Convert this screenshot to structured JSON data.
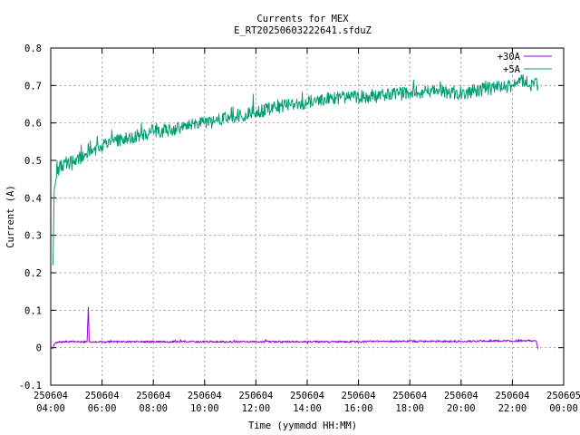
{
  "chart_data": {
    "type": "line",
    "title": "Currents for MEX",
    "subtitle": "E_RT20250603222641.sfduZ",
    "xlabel": "Time (yymmdd HH:MM)",
    "ylabel": "Current (A)",
    "xlim": [
      "2025-06-04T04:00",
      "2025-06-05T00:00"
    ],
    "ylim": [
      -0.1,
      0.8
    ],
    "grid": true,
    "legend_position": "top-right",
    "x_ticks": [
      {
        "x": "2025-06-04T04:00",
        "date": "250604",
        "time": "04:00"
      },
      {
        "x": "2025-06-04T06:00",
        "date": "250604",
        "time": "06:00"
      },
      {
        "x": "2025-06-04T08:00",
        "date": "250604",
        "time": "08:00"
      },
      {
        "x": "2025-06-04T10:00",
        "date": "250604",
        "time": "10:00"
      },
      {
        "x": "2025-06-04T12:00",
        "date": "250604",
        "time": "12:00"
      },
      {
        "x": "2025-06-04T14:00",
        "date": "250604",
        "time": "14:00"
      },
      {
        "x": "2025-06-04T16:00",
        "date": "250604",
        "time": "16:00"
      },
      {
        "x": "2025-06-04T18:00",
        "date": "250604",
        "time": "18:00"
      },
      {
        "x": "2025-06-04T20:00",
        "date": "250604",
        "time": "20:00"
      },
      {
        "x": "2025-06-04T22:00",
        "date": "250604",
        "time": "22:00"
      },
      {
        "x": "2025-06-05T00:00",
        "date": "250605",
        "time": "00:00"
      }
    ],
    "y_ticks": [
      {
        "value": -0.1,
        "label": "-0.1"
      },
      {
        "value": 0,
        "label": "0"
      },
      {
        "value": 0.1,
        "label": "0.1"
      },
      {
        "value": 0.2,
        "label": "0.2"
      },
      {
        "value": 0.3,
        "label": "0.3"
      },
      {
        "value": 0.4,
        "label": "0.4"
      },
      {
        "value": 0.5,
        "label": "0.5"
      },
      {
        "value": 0.6,
        "label": "0.6"
      },
      {
        "value": 0.7,
        "label": "0.7"
      },
      {
        "value": 0.8,
        "label": "0.8"
      }
    ],
    "series": [
      {
        "name": "+30A",
        "color": "#9400d3",
        "x": [
          "2025-06-04T04:00",
          "2025-06-04T04:05",
          "2025-06-04T04:10",
          "2025-06-04T04:20",
          "2025-06-04T04:40",
          "2025-06-04T05:00",
          "2025-06-04T05:25",
          "2025-06-04T05:28",
          "2025-06-04T05:30",
          "2025-06-04T06:00",
          "2025-06-04T07:00",
          "2025-06-04T08:00",
          "2025-06-04T09:00",
          "2025-06-04T10:00",
          "2025-06-04T11:00",
          "2025-06-04T12:00",
          "2025-06-04T13:00",
          "2025-06-04T14:00",
          "2025-06-04T15:00",
          "2025-06-04T16:00",
          "2025-06-04T17:00",
          "2025-06-04T18:00",
          "2025-06-04T19:00",
          "2025-06-04T20:00",
          "2025-06-04T21:00",
          "2025-06-04T22:00",
          "2025-06-04T22:40",
          "2025-06-04T22:55",
          "2025-06-04T23:00"
        ],
        "y": [
          0.0,
          0.0,
          0.012,
          0.015,
          0.016,
          0.016,
          0.015,
          0.108,
          0.016,
          0.016,
          0.016,
          0.016,
          0.016,
          0.016,
          0.016,
          0.016,
          0.016,
          0.016,
          0.016,
          0.016,
          0.017,
          0.017,
          0.017,
          0.017,
          0.018,
          0.018,
          0.019,
          0.018,
          -0.003
        ]
      },
      {
        "name": "+5A",
        "color": "#009e73",
        "x": [
          "2025-06-04T04:05",
          "2025-06-04T04:08",
          "2025-06-04T04:12",
          "2025-06-04T04:20",
          "2025-06-04T04:30",
          "2025-06-04T05:00",
          "2025-06-04T05:30",
          "2025-06-04T06:00",
          "2025-06-04T07:00",
          "2025-06-04T08:00",
          "2025-06-04T09:00",
          "2025-06-04T10:00",
          "2025-06-04T11:00",
          "2025-06-04T12:00",
          "2025-06-04T13:00",
          "2025-06-04T14:00",
          "2025-06-04T15:00",
          "2025-06-04T16:00",
          "2025-06-04T17:00",
          "2025-06-04T18:00",
          "2025-06-04T19:00",
          "2025-06-04T20:00",
          "2025-06-04T21:00",
          "2025-06-04T22:00",
          "2025-06-04T22:30",
          "2025-06-04T23:00"
        ],
        "y": [
          0.22,
          0.42,
          0.45,
          0.48,
          0.49,
          0.5,
          0.52,
          0.54,
          0.56,
          0.575,
          0.585,
          0.6,
          0.615,
          0.63,
          0.645,
          0.655,
          0.665,
          0.67,
          0.675,
          0.68,
          0.685,
          0.68,
          0.69,
          0.7,
          0.715,
          0.7
        ]
      }
    ]
  }
}
